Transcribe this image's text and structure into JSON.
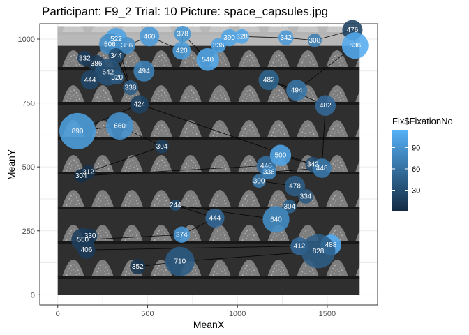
{
  "chart_data": {
    "type": "scatter",
    "title": "Participant: F9_2 Trial: 10 Picture: space_capsules.jpg",
    "xlabel": "MeanX",
    "ylabel": "MeanY",
    "xlim": [
      -100,
      1780
    ],
    "ylim": [
      -40,
      1060
    ],
    "x_ticks": [
      0,
      500,
      1000,
      1500
    ],
    "y_ticks": [
      0,
      250,
      500,
      750,
      1000
    ],
    "grid": true,
    "background_image": "black-and-white photo of space capsules on a factory floor",
    "image_extent": {
      "x": [
        0,
        1680
      ],
      "y": [
        0,
        1050
      ]
    },
    "legend": {
      "title": "Fix$FixationNo",
      "ticks": [
        30,
        60,
        90
      ],
      "range": [
        1,
        115
      ],
      "color_low": "#132B43",
      "color_high": "#56B1F7",
      "placement": "right"
    },
    "points": [
      {
        "label": "522",
        "x": 325,
        "y": 1000,
        "duration": 522,
        "fix": 103
      },
      {
        "label": "506",
        "x": 290,
        "y": 980,
        "duration": 506,
        "fix": 85
      },
      {
        "label": "386",
        "x": 385,
        "y": 975,
        "duration": 386,
        "fix": 88
      },
      {
        "label": "460",
        "x": 510,
        "y": 1010,
        "duration": 460,
        "fix": 95
      },
      {
        "label": "378",
        "x": 695,
        "y": 1020,
        "duration": 378,
        "fix": 92
      },
      {
        "label": "420",
        "x": 690,
        "y": 955,
        "duration": 420,
        "fix": 98
      },
      {
        "label": "336",
        "x": 895,
        "y": 975,
        "duration": 336,
        "fix": 102
      },
      {
        "label": "540",
        "x": 835,
        "y": 920,
        "duration": 540,
        "fix": 108
      },
      {
        "label": "328",
        "x": 1025,
        "y": 1010,
        "duration": 328,
        "fix": 105
      },
      {
        "label": "390",
        "x": 955,
        "y": 1005,
        "duration": 390,
        "fix": 104
      },
      {
        "label": "342",
        "x": 1270,
        "y": 1005,
        "duration": 342,
        "fix": 96
      },
      {
        "label": "308",
        "x": 1430,
        "y": 995,
        "duration": 308,
        "fix": 70
      },
      {
        "label": "476",
        "x": 1640,
        "y": 1035,
        "duration": 476,
        "fix": 20
      },
      {
        "label": "636",
        "x": 1655,
        "y": 975,
        "duration": 636,
        "fix": 110
      },
      {
        "label": "332",
        "x": 150,
        "y": 925,
        "duration": 332,
        "fix": 18
      },
      {
        "label": "386",
        "x": 215,
        "y": 905,
        "duration": 386,
        "fix": 15
      },
      {
        "label": "344",
        "x": 325,
        "y": 935,
        "duration": 344,
        "fix": 30
      },
      {
        "label": "642",
        "x": 280,
        "y": 870,
        "duration": 642,
        "fix": 35
      },
      {
        "label": "320",
        "x": 330,
        "y": 850,
        "duration": 320,
        "fix": 40
      },
      {
        "label": "444",
        "x": 180,
        "y": 840,
        "duration": 444,
        "fix": 25
      },
      {
        "label": "494",
        "x": 480,
        "y": 875,
        "duration": 494,
        "fix": 75
      },
      {
        "label": "338",
        "x": 405,
        "y": 810,
        "duration": 338,
        "fix": 45
      },
      {
        "label": "424",
        "x": 455,
        "y": 745,
        "duration": 424,
        "fix": 22
      },
      {
        "label": "482",
        "x": 1175,
        "y": 840,
        "duration": 482,
        "fix": 50
      },
      {
        "label": "494",
        "x": 1330,
        "y": 800,
        "duration": 494,
        "fix": 65
      },
      {
        "label": "482",
        "x": 1490,
        "y": 740,
        "duration": 482,
        "fix": 55
      },
      {
        "label": "890",
        "x": 110,
        "y": 640,
        "duration": 890,
        "fix": 100
      },
      {
        "label": "660",
        "x": 345,
        "y": 660,
        "duration": 660,
        "fix": 90
      },
      {
        "label": "304",
        "x": 580,
        "y": 580,
        "duration": 304,
        "fix": 20
      },
      {
        "label": "312",
        "x": 170,
        "y": 480,
        "duration": 312,
        "fix": 8
      },
      {
        "label": "304",
        "x": 130,
        "y": 465,
        "duration": 304,
        "fix": 5
      },
      {
        "label": "446",
        "x": 1160,
        "y": 505,
        "duration": 446,
        "fix": 60
      },
      {
        "label": "500",
        "x": 1240,
        "y": 545,
        "duration": 500,
        "fix": 105
      },
      {
        "label": "336",
        "x": 1175,
        "y": 480,
        "duration": 336,
        "fix": 80
      },
      {
        "label": "342",
        "x": 1420,
        "y": 510,
        "duration": 342,
        "fix": 30
      },
      {
        "label": "448",
        "x": 1470,
        "y": 495,
        "duration": 448,
        "fix": 68
      },
      {
        "label": "300",
        "x": 1120,
        "y": 445,
        "duration": 300,
        "fix": 70
      },
      {
        "label": "478",
        "x": 1320,
        "y": 425,
        "duration": 478,
        "fix": 45
      },
      {
        "label": "334",
        "x": 1380,
        "y": 385,
        "duration": 334,
        "fix": 40
      },
      {
        "label": "304",
        "x": 1290,
        "y": 345,
        "duration": 304,
        "fix": 50
      },
      {
        "label": "640",
        "x": 1215,
        "y": 295,
        "duration": 640,
        "fix": 85
      },
      {
        "label": "244",
        "x": 655,
        "y": 350,
        "duration": 244,
        "fix": 30
      },
      {
        "label": "444",
        "x": 875,
        "y": 300,
        "duration": 444,
        "fix": 55
      },
      {
        "label": "374",
        "x": 690,
        "y": 235,
        "duration": 374,
        "fix": 95
      },
      {
        "label": "550",
        "x": 140,
        "y": 215,
        "duration": 550,
        "fix": 18
      },
      {
        "label": "330",
        "x": 180,
        "y": 230,
        "duration": 330,
        "fix": 12
      },
      {
        "label": "406",
        "x": 160,
        "y": 175,
        "duration": 406,
        "fix": 15
      },
      {
        "label": "412",
        "x": 1345,
        "y": 190,
        "duration": 412,
        "fix": 55
      },
      {
        "label": "488",
        "x": 1520,
        "y": 195,
        "duration": 488,
        "fix": 112
      },
      {
        "label": "828",
        "x": 1450,
        "y": 170,
        "duration": 828,
        "fix": 45
      },
      {
        "label": "710",
        "x": 680,
        "y": 130,
        "duration": 710,
        "fix": 42
      },
      {
        "label": "352",
        "x": 445,
        "y": 110,
        "duration": 352,
        "fix": 10
      }
    ],
    "path_order": [
      14,
      15,
      17,
      18,
      19,
      16,
      21,
      0,
      1,
      2,
      3,
      5,
      4,
      7,
      6,
      9,
      8,
      10,
      11,
      12,
      13,
      24,
      23,
      25,
      35,
      33,
      32,
      34,
      22,
      26,
      27,
      28,
      29,
      30,
      31,
      36,
      37,
      38,
      39,
      40,
      41,
      42,
      43,
      44,
      45,
      46,
      47,
      48,
      49,
      50,
      51
    ]
  }
}
